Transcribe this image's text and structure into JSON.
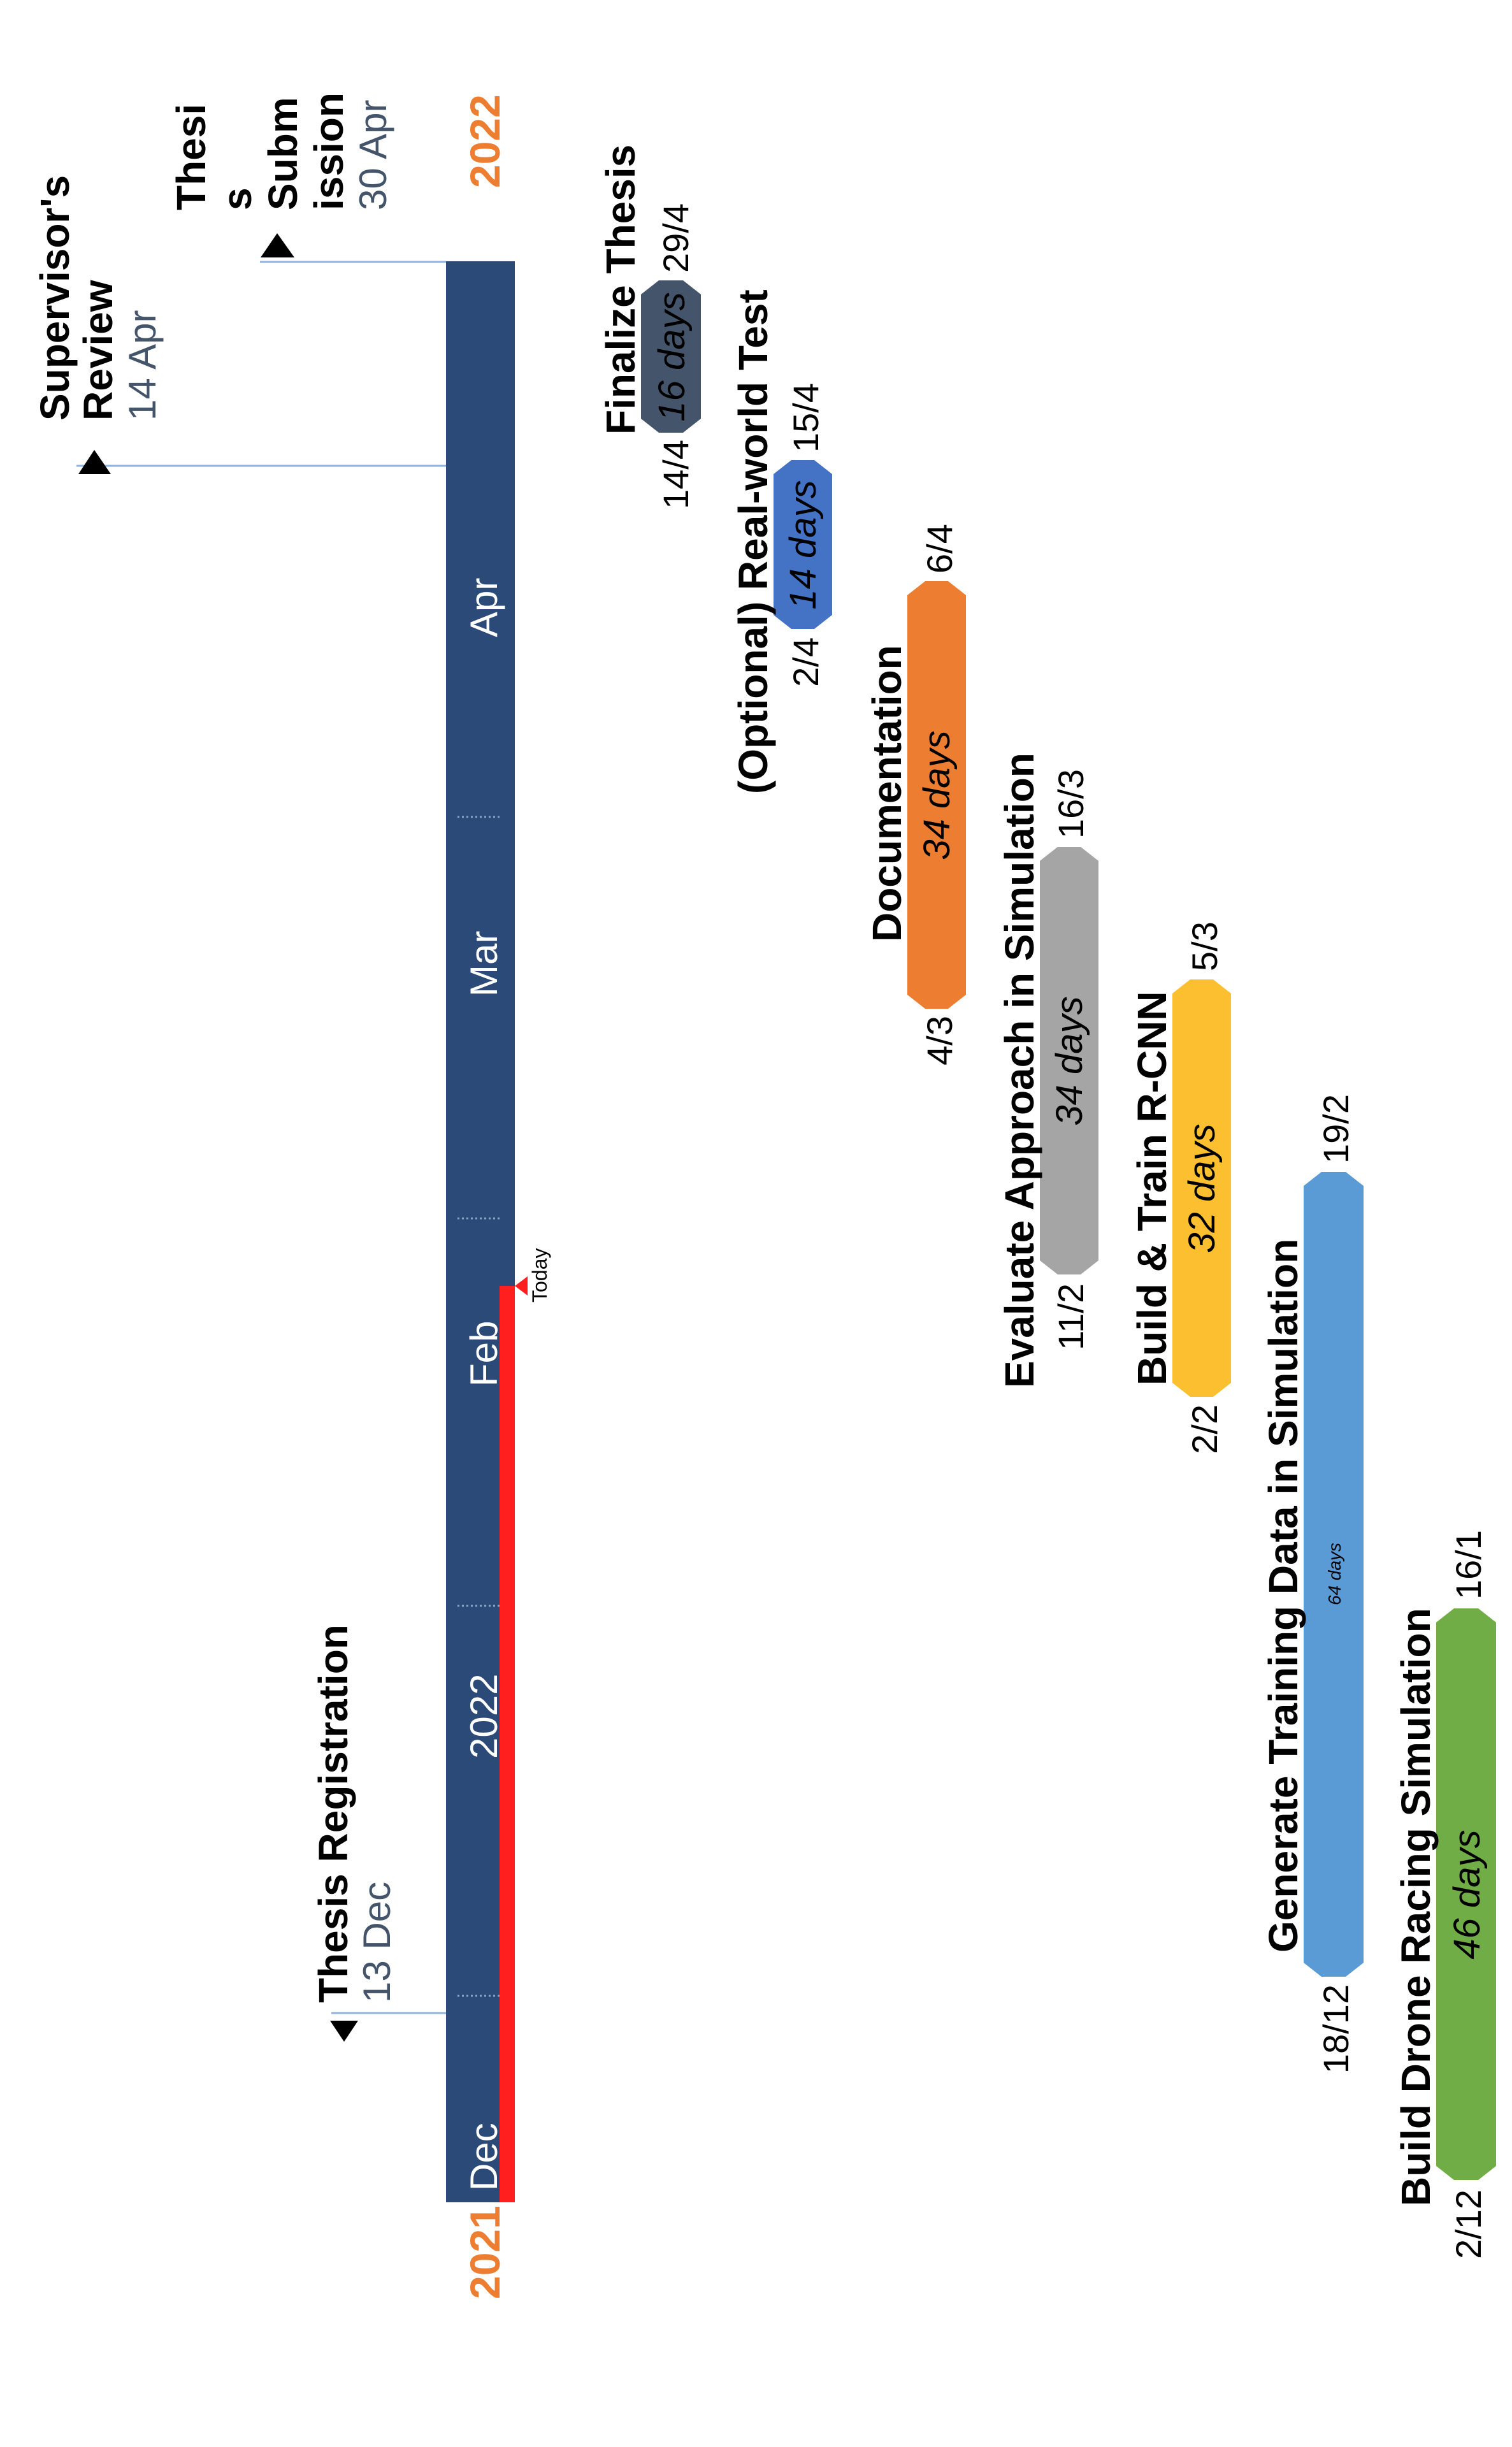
{
  "timeline": {
    "year_start": "2021",
    "year_end": "2022",
    "months": [
      "Dec",
      "2022",
      "Feb",
      "Mar",
      "Apr"
    ],
    "today_label": "Today",
    "colors": {
      "bar": "#2b4a78",
      "year_label": "#ec7d31",
      "today": "#ff1f1f",
      "milestone_line": "#8db3e2"
    }
  },
  "milestones": [
    {
      "title_lines": [
        "Thesis Registration"
      ],
      "date": "13 Dec"
    },
    {
      "title_lines": [
        "Supervisor's",
        "Review"
      ],
      "date": "14 Apr"
    },
    {
      "title_lines": [
        "Thesi",
        "s",
        "Subm",
        "ission"
      ],
      "date": "30 Apr"
    }
  ],
  "tasks": [
    {
      "name": "Finalize Thesis",
      "start": "14/4",
      "end": "29/4",
      "duration": "16 days",
      "color": "#44546a"
    },
    {
      "name": "(Optional) Real-world Test",
      "start": "2/4",
      "end": "15/4",
      "duration": "14 days",
      "color": "#4472c4"
    },
    {
      "name": "Documentation",
      "start": "4/3",
      "end": "6/4",
      "duration": "34 days",
      "color": "#ed7d31"
    },
    {
      "name": "Evaluate Approach in Simulation",
      "start": "11/2",
      "end": "16/3",
      "duration": "34 days",
      "color": "#a5a5a5"
    },
    {
      "name": "Build & Train R-CNN",
      "start": "2/2",
      "end": "5/3",
      "duration": "32 days",
      "color": "#fbbf2f"
    },
    {
      "name": "Generate Training Data in Simulation",
      "start": "18/12",
      "end": "19/2",
      "duration": "64 days",
      "color": "#5b9bd5"
    },
    {
      "name": "Build Drone Racing Simulation",
      "start": "2/12",
      "end": "16/1",
      "duration": "46 days",
      "color": "#70ad47"
    }
  ]
}
